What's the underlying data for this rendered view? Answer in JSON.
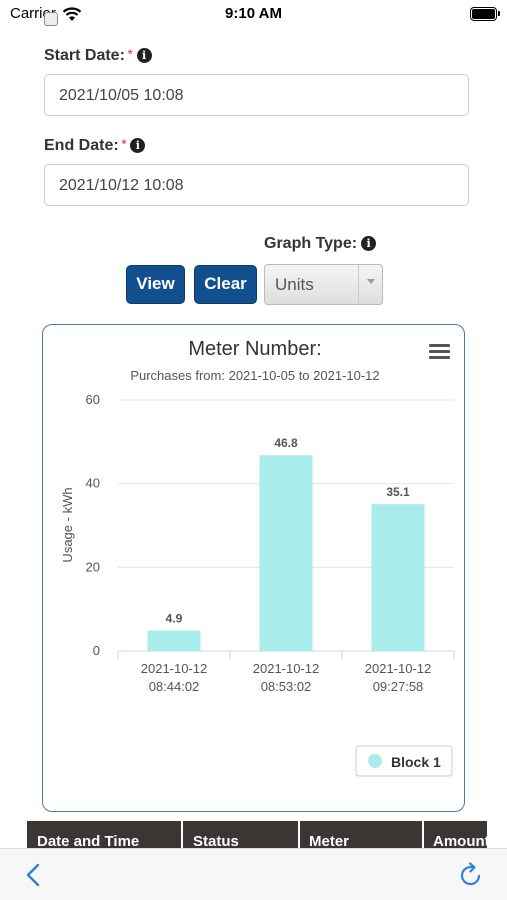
{
  "status_bar": {
    "carrier": "Carrier",
    "time": "9:10 AM"
  },
  "form": {
    "start_date": {
      "label": "Start Date:",
      "required_mark": "*",
      "value": "2021/10/05 10:08"
    },
    "end_date": {
      "label": "End Date:",
      "required_mark": "*",
      "value": "2021/10/12 10:08"
    },
    "graph_type": {
      "label": "Graph Type:",
      "selected": "Units"
    },
    "view_label": "View",
    "clear_label": "Clear"
  },
  "chart_data": {
    "type": "bar",
    "title": "Meter Number:",
    "subtitle": "Purchases from: 2021-10-05 to 2021-10-12",
    "ylabel": "Usage - kWh",
    "xlabel": "",
    "ylim": [
      0,
      60
    ],
    "yticks": [
      "0",
      "20",
      "40",
      "60"
    ],
    "categories": [
      [
        "2021-10-12",
        "08:44:02"
      ],
      [
        "2021-10-12",
        "08:53:02"
      ],
      [
        "2021-10-12",
        "09:27:58"
      ]
    ],
    "series": [
      {
        "name": "Block 1",
        "values": [
          4.9,
          46.8,
          35.1
        ],
        "color": "#a9ecec"
      }
    ],
    "data_labels": [
      "4.9",
      "46.8",
      "35.1"
    ],
    "grid": true,
    "legend_position": "bottom-right"
  },
  "table": {
    "headers": [
      "Date and Time",
      "Status",
      "Meter",
      "Amount"
    ]
  },
  "colors": {
    "accent": "#124f8f",
    "bar": "#a9ecec",
    "card_border": "#4a7ab8",
    "toolbar_icon": "#2f7fe0"
  },
  "icons": {
    "menu": "hamburger-menu-icon",
    "back": "chevron-left-icon",
    "reload": "reload-icon",
    "info": "info-circle-icon"
  }
}
